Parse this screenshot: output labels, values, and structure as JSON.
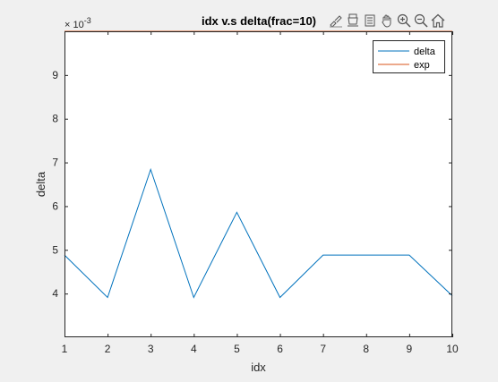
{
  "chart_data": {
    "type": "line",
    "title": "idx v.s delta(frac=10)",
    "xlabel": "idx",
    "ylabel": "delta",
    "exponent_label": "× 10",
    "exponent_power": "-3",
    "xlim": [
      1,
      10
    ],
    "ylim": [
      3.0,
      10.0
    ],
    "xticks": [
      1,
      2,
      3,
      4,
      5,
      6,
      7,
      8,
      9,
      10
    ],
    "xtick_labels": [
      "1",
      "2",
      "3",
      "4",
      "5",
      "6",
      "7",
      "8",
      "9",
      "10"
    ],
    "yticks": [
      4,
      5,
      6,
      7,
      8,
      9
    ],
    "ytick_labels": [
      "4",
      "5",
      "6",
      "7",
      "8",
      "9"
    ],
    "grid": false,
    "legend_position": "top-right",
    "series": [
      {
        "name": "delta",
        "color": "#0072bd",
        "x": [
          1,
          2,
          3,
          4,
          5,
          6,
          7,
          8,
          9,
          10
        ],
        "y": [
          4.88,
          3.91,
          6.84,
          3.91,
          5.86,
          3.91,
          4.88,
          4.88,
          4.88,
          3.95
        ]
      },
      {
        "name": "exp",
        "color": "#d95319",
        "x": [
          1,
          10
        ],
        "y": [
          10.0,
          10.0
        ]
      }
    ]
  },
  "toolbar": {
    "icons": [
      "brush-icon",
      "insert-legend-icon",
      "insert-colorbar-icon",
      "pan-icon",
      "zoom-in-icon",
      "zoom-out-icon",
      "home-icon"
    ]
  }
}
